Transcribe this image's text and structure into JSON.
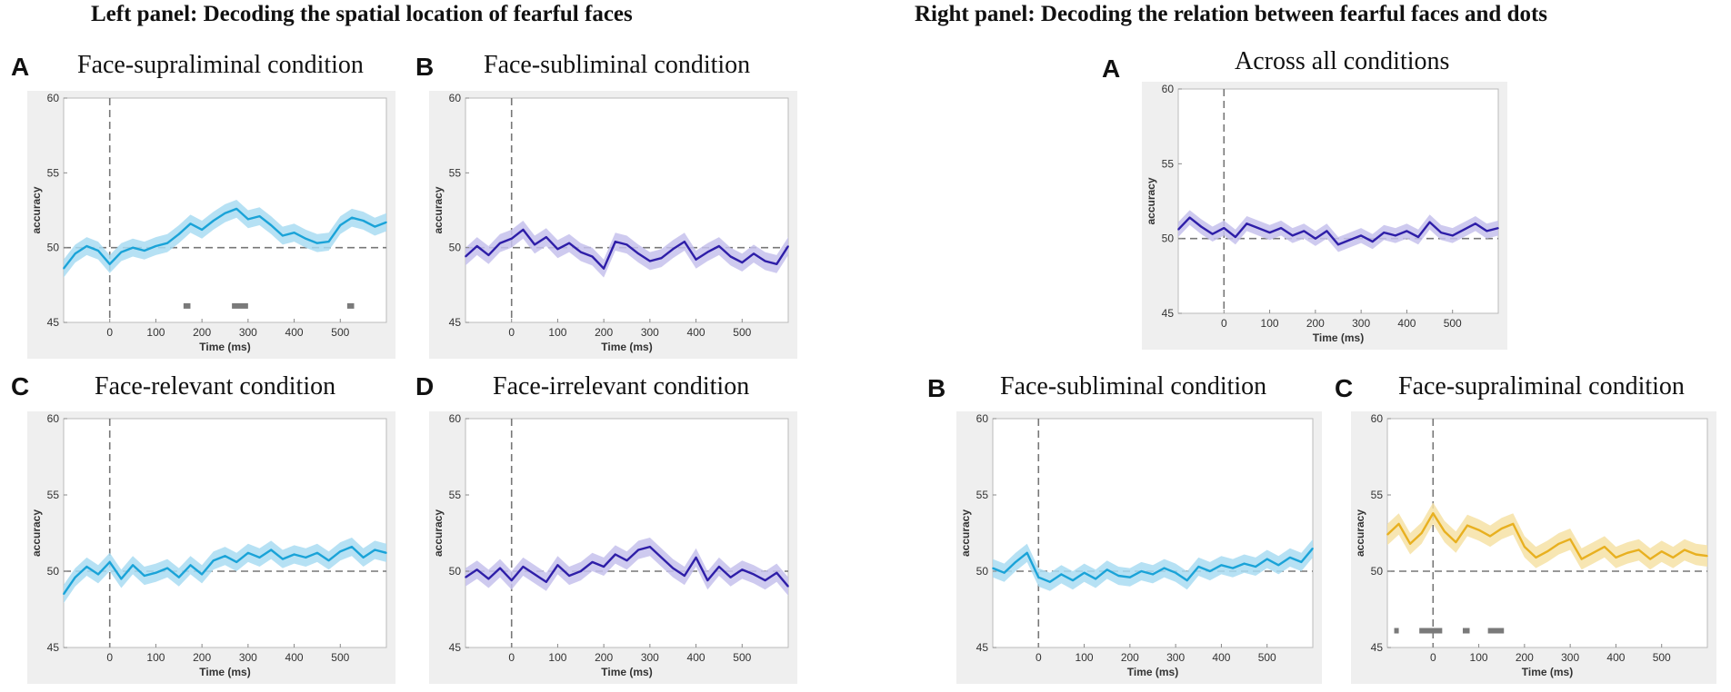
{
  "left_panel_title": "Left panel: Decoding the spatial location of fearful faces",
  "right_panel_title": "Right panel: Decoding the relation between fearful faces and dots",
  "chart_data": [
    {
      "id": "L-A",
      "letter": "A",
      "type": "line",
      "title": "Face-supraliminal condition",
      "xlabel": "Time (ms)",
      "ylabel": "accuracy",
      "xlim": [
        -100,
        600
      ],
      "ylim": [
        45,
        60
      ],
      "xticks": [
        0,
        100,
        200,
        300,
        400,
        500
      ],
      "yticks": [
        45,
        50,
        55,
        60
      ],
      "chance": 50,
      "onset_ms": 0,
      "color": "#1aa3d8",
      "band_color": "#a9dcf2",
      "series": [
        {
          "name": "decoding accuracy",
          "x": [
            -100,
            -75,
            -50,
            -25,
            0,
            25,
            50,
            75,
            100,
            125,
            150,
            175,
            200,
            225,
            250,
            275,
            300,
            325,
            350,
            375,
            400,
            425,
            450,
            475,
            500,
            525,
            550,
            575,
            600
          ],
          "y": [
            48.6,
            49.6,
            50.1,
            49.8,
            48.9,
            49.7,
            50.0,
            49.8,
            50.1,
            50.3,
            50.9,
            51.6,
            51.2,
            51.8,
            52.3,
            52.6,
            51.9,
            52.1,
            51.5,
            50.8,
            51.0,
            50.6,
            50.3,
            50.4,
            51.5,
            52.0,
            51.8,
            51.4,
            51.7
          ],
          "sem": 0.6
        }
      ],
      "significant_ms": [
        [
          160,
          175
        ],
        [
          265,
          300
        ],
        [
          515,
          530
        ]
      ]
    },
    {
      "id": "L-B",
      "letter": "B",
      "type": "line",
      "title": "Face-subliminal condition",
      "xlabel": "Time (ms)",
      "ylabel": "accuracy",
      "xlim": [
        -100,
        600
      ],
      "ylim": [
        45,
        60
      ],
      "xticks": [
        0,
        100,
        200,
        300,
        400,
        500
      ],
      "yticks": [
        45,
        50,
        55,
        60
      ],
      "chance": 50,
      "onset_ms": 0,
      "color": "#2e1ea8",
      "band_color": "#c6c1ec",
      "series": [
        {
          "name": "decoding accuracy",
          "x": [
            -100,
            -75,
            -50,
            -25,
            0,
            25,
            50,
            75,
            100,
            125,
            150,
            175,
            200,
            225,
            250,
            275,
            300,
            325,
            350,
            375,
            400,
            425,
            450,
            475,
            500,
            525,
            550,
            575,
            600
          ],
          "y": [
            49.4,
            50.1,
            49.5,
            50.3,
            50.6,
            51.2,
            50.2,
            50.7,
            49.9,
            50.3,
            49.7,
            49.4,
            48.6,
            50.4,
            50.2,
            49.6,
            49.1,
            49.3,
            49.9,
            50.4,
            49.2,
            49.7,
            50.1,
            49.4,
            49.0,
            49.6,
            49.1,
            48.9,
            50.1
          ],
          "sem": 0.6
        }
      ],
      "significant_ms": []
    },
    {
      "id": "L-C",
      "letter": "C",
      "type": "line",
      "title": "Face-relevant condition",
      "xlabel": "Time (ms)",
      "ylabel": "accuracy",
      "xlim": [
        -100,
        600
      ],
      "ylim": [
        45,
        60
      ],
      "xticks": [
        0,
        100,
        200,
        300,
        400,
        500
      ],
      "yticks": [
        45,
        50,
        55,
        60
      ],
      "chance": 50,
      "onset_ms": 0,
      "color": "#1aa3d8",
      "band_color": "#a9dcf2",
      "series": [
        {
          "name": "decoding accuracy",
          "x": [
            -100,
            -75,
            -50,
            -25,
            0,
            25,
            50,
            75,
            100,
            125,
            150,
            175,
            200,
            225,
            250,
            275,
            300,
            325,
            350,
            375,
            400,
            425,
            450,
            475,
            500,
            525,
            550,
            575,
            600
          ],
          "y": [
            48.5,
            49.6,
            50.3,
            49.8,
            50.6,
            49.5,
            50.4,
            49.7,
            49.9,
            50.2,
            49.6,
            50.4,
            49.8,
            50.7,
            51.0,
            50.6,
            51.2,
            50.9,
            51.4,
            50.8,
            51.1,
            50.9,
            51.2,
            50.7,
            51.3,
            51.6,
            50.9,
            51.4,
            51.2
          ],
          "sem": 0.6
        }
      ],
      "significant_ms": []
    },
    {
      "id": "L-D",
      "letter": "D",
      "type": "line",
      "title": "Face-irrelevant condition",
      "xlabel": "Time (ms)",
      "ylabel": "accuracy",
      "xlim": [
        -100,
        600
      ],
      "ylim": [
        45,
        60
      ],
      "xticks": [
        0,
        100,
        200,
        300,
        400,
        500
      ],
      "yticks": [
        45,
        50,
        55,
        60
      ],
      "chance": 50,
      "onset_ms": 0,
      "color": "#2e1ea8",
      "band_color": "#c6c1ec",
      "series": [
        {
          "name": "decoding accuracy",
          "x": [
            -100,
            -75,
            -50,
            -25,
            0,
            25,
            50,
            75,
            100,
            125,
            150,
            175,
            200,
            225,
            250,
            275,
            300,
            325,
            350,
            375,
            400,
            425,
            450,
            475,
            500,
            525,
            550,
            575,
            600
          ],
          "y": [
            49.6,
            50.1,
            49.5,
            50.2,
            49.4,
            50.3,
            49.8,
            49.3,
            50.4,
            49.7,
            50.0,
            50.6,
            50.3,
            51.1,
            50.7,
            51.4,
            51.6,
            50.9,
            50.2,
            49.7,
            50.9,
            49.4,
            50.3,
            49.6,
            50.1,
            49.8,
            49.4,
            49.9,
            49.0
          ],
          "sem": 0.6
        }
      ],
      "significant_ms": []
    },
    {
      "id": "R-A",
      "letter": "A",
      "type": "line",
      "title": "Across all conditions",
      "xlabel": "Time (ms)",
      "ylabel": "accuracy",
      "xlim": [
        -100,
        600
      ],
      "ylim": [
        45,
        60
      ],
      "xticks": [
        0,
        100,
        200,
        300,
        400,
        500
      ],
      "yticks": [
        45,
        50,
        55,
        60
      ],
      "chance": 50,
      "onset_ms": 0,
      "color": "#2e1ea8",
      "band_color": "#c6c1ec",
      "series": [
        {
          "name": "decoding accuracy",
          "x": [
            -100,
            -75,
            -50,
            -25,
            0,
            25,
            50,
            75,
            100,
            125,
            150,
            175,
            200,
            225,
            250,
            275,
            300,
            325,
            350,
            375,
            400,
            425,
            450,
            475,
            500,
            525,
            550,
            575,
            600
          ],
          "y": [
            50.6,
            51.4,
            50.8,
            50.3,
            50.7,
            50.1,
            51.0,
            50.7,
            50.4,
            50.7,
            50.2,
            50.5,
            50.0,
            50.5,
            49.6,
            49.9,
            50.2,
            49.8,
            50.4,
            50.2,
            50.5,
            50.1,
            51.1,
            50.4,
            50.2,
            50.6,
            51.0,
            50.5,
            50.7
          ],
          "sem": 0.5
        }
      ],
      "significant_ms": []
    },
    {
      "id": "R-B",
      "letter": "B",
      "type": "line",
      "title": "Face-subliminal condition",
      "xlabel": "Time (ms)",
      "ylabel": "accuracy",
      "xlim": [
        -100,
        600
      ],
      "ylim": [
        45,
        60
      ],
      "xticks": [
        0,
        100,
        200,
        300,
        400,
        500
      ],
      "yticks": [
        45,
        50,
        55,
        60
      ],
      "chance": 50,
      "onset_ms": 0,
      "color": "#1aa3d8",
      "band_color": "#a9dcf2",
      "series": [
        {
          "name": "decoding accuracy",
          "x": [
            -100,
            -75,
            -50,
            -25,
            0,
            25,
            50,
            75,
            100,
            125,
            150,
            175,
            200,
            225,
            250,
            275,
            300,
            325,
            350,
            375,
            400,
            425,
            450,
            475,
            500,
            525,
            550,
            575,
            600
          ],
          "y": [
            50.2,
            49.9,
            50.6,
            51.2,
            49.6,
            49.3,
            49.8,
            49.4,
            49.9,
            49.5,
            50.1,
            49.7,
            49.6,
            50.0,
            49.8,
            50.2,
            49.9,
            49.4,
            50.3,
            50.0,
            50.4,
            50.2,
            50.5,
            50.3,
            50.8,
            50.4,
            50.9,
            50.6,
            51.5
          ],
          "sem": 0.6
        }
      ],
      "significant_ms": []
    },
    {
      "id": "R-C",
      "letter": "C",
      "type": "line",
      "title": "Face-supraliminal condition",
      "xlabel": "Time (ms)",
      "ylabel": "accuracy",
      "xlim": [
        -100,
        600
      ],
      "ylim": [
        45,
        60
      ],
      "xticks": [
        0,
        100,
        200,
        300,
        400,
        500
      ],
      "yticks": [
        45,
        50,
        55,
        60
      ],
      "chance": 50,
      "onset_ms": 0,
      "color": "#e8b020",
      "band_color": "#f6e2a6",
      "series": [
        {
          "name": "decoding accuracy",
          "x": [
            -100,
            -75,
            -50,
            -25,
            0,
            25,
            50,
            75,
            100,
            125,
            150,
            175,
            200,
            225,
            250,
            275,
            300,
            325,
            350,
            375,
            400,
            425,
            450,
            475,
            500,
            525,
            550,
            575,
            600
          ],
          "y": [
            52.4,
            53.1,
            51.8,
            52.5,
            53.8,
            52.6,
            51.9,
            53.0,
            52.7,
            52.3,
            52.8,
            53.1,
            51.6,
            50.9,
            51.3,
            51.8,
            52.1,
            50.8,
            51.2,
            51.6,
            50.9,
            51.2,
            51.4,
            50.8,
            51.3,
            50.9,
            51.4,
            51.1,
            51.0
          ],
          "sem": 0.7
        }
      ],
      "significant_ms": [
        [
          -85,
          -75
        ],
        [
          -30,
          20
        ],
        [
          65,
          80
        ],
        [
          120,
          155
        ]
      ]
    }
  ]
}
